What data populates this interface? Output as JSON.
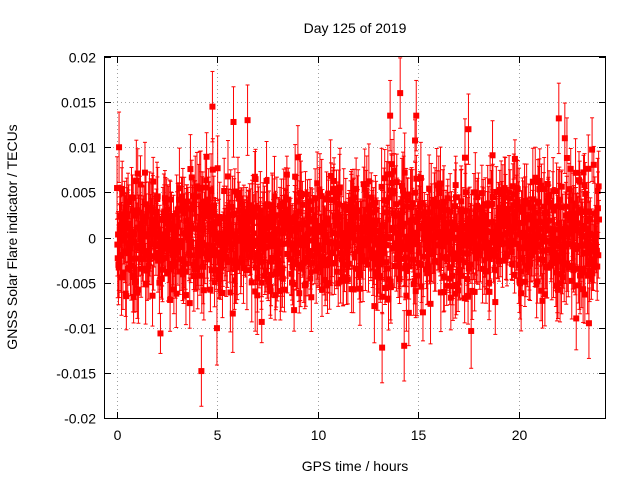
{
  "chart_data": {
    "type": "scatter",
    "title": "Day 125 of 2019",
    "xlabel": "GPS time / hours",
    "ylabel": "GNSS Solar Flare indicator / TECUs",
    "xlim": [
      -0.6,
      24.3
    ],
    "ylim": [
      -0.02,
      0.02
    ],
    "x_ticks": [
      0,
      5,
      10,
      15,
      20
    ],
    "x_tick_labels": [
      "0",
      "5",
      "10",
      "15",
      "20"
    ],
    "y_ticks": [
      -0.02,
      -0.015,
      -0.01,
      -0.005,
      0,
      0.005,
      0.01,
      0.015,
      0.02
    ],
    "y_tick_labels": [
      "-0.02",
      "-0.015",
      "-0.01",
      "-0.005",
      "0",
      "0.005",
      "0.01",
      "0.015",
      "0.02"
    ],
    "grid": true,
    "marker": "filled-square",
    "error_bars": true,
    "series": [
      {
        "name": "GNSS Solar Flare indicator",
        "color": "#ff0000",
        "x_range": [
          0,
          24
        ],
        "typical_spread": 0.006,
        "typical_error": 0.003,
        "highlighted_points": [
          {
            "x": 0.1,
            "y": 0.01
          },
          {
            "x": 4.2,
            "y": -0.0148
          },
          {
            "x": 4.75,
            "y": 0.0145
          },
          {
            "x": 5.8,
            "y": 0.0128
          },
          {
            "x": 6.5,
            "y": 0.013
          },
          {
            "x": 13.2,
            "y": -0.0122
          },
          {
            "x": 13.6,
            "y": 0.0135
          },
          {
            "x": 14.1,
            "y": 0.016
          },
          {
            "x": 14.3,
            "y": -0.012
          },
          {
            "x": 14.9,
            "y": 0.0135
          },
          {
            "x": 17.5,
            "y": 0.012
          },
          {
            "x": 22.0,
            "y": 0.0132
          },
          {
            "x": 22.3,
            "y": 0.011
          },
          {
            "x": 23.5,
            "y": -0.0095
          }
        ]
      }
    ]
  }
}
